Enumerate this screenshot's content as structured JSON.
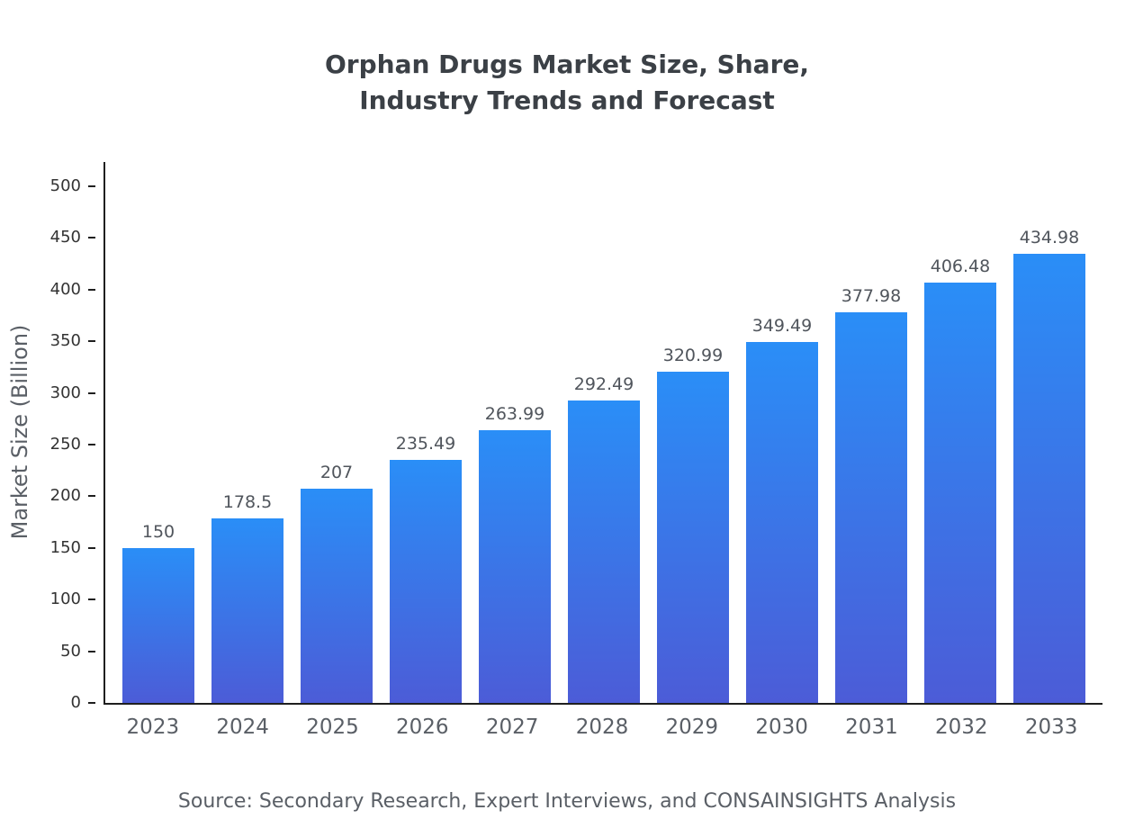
{
  "chart": {
    "title_lines": [
      "Orphan Drugs Market Size, Share,",
      "Industry Trends and Forecast"
    ],
    "ylabel": "Market Size (Billion)",
    "source": "Source: Secondary Research, Expert Interviews, and CONSAINSIGHTS Analysis"
  },
  "chart_data": {
    "type": "bar",
    "title": "Orphan Drugs Market Size, Share, Industry Trends and Forecast",
    "categories": [
      "2023",
      "2024",
      "2025",
      "2026",
      "2027",
      "2028",
      "2029",
      "2030",
      "2031",
      "2032",
      "2033"
    ],
    "values": [
      150,
      178.5,
      207,
      235.49,
      263.99,
      292.49,
      320.99,
      349.49,
      377.98,
      406.48,
      434.98
    ],
    "value_labels": [
      "150",
      "178.5",
      "207",
      "235.49",
      "263.99",
      "292.49",
      "320.99",
      "349.49",
      "377.98",
      "406.48",
      "434.98"
    ],
    "xlabel": "",
    "ylabel": "Market Size (Billion)",
    "ylim": [
      0,
      500
    ],
    "ytick_step": 50,
    "grid": false,
    "legend_position": "none",
    "bar_color_top": "#2a8ef7",
    "bar_color_bottom": "#4c5cd7"
  }
}
